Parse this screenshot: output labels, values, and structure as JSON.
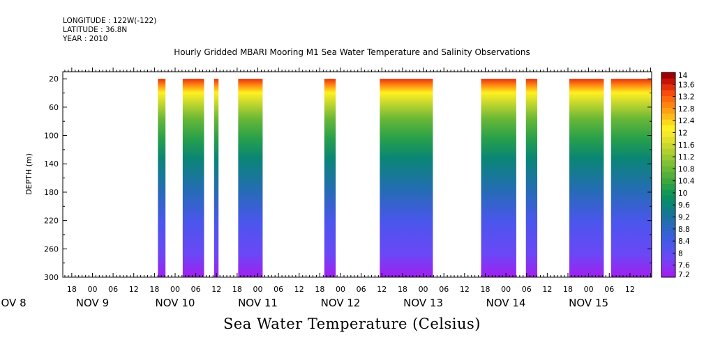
{
  "header": {
    "longitude": "LONGITUDE : 122W(-122)",
    "latitude": "LATITUDE : 36.8N",
    "year": "YEAR : 2010"
  },
  "chart_data": {
    "type": "heatmap",
    "title": "Hourly Gridded MBARI Mooring M1 Sea Water Temperature and Salinity Observations",
    "subtitle": "Sea Water Temperature (Celsius)",
    "ylabel": "DEPTH (m)",
    "y_ticks": [
      "20",
      "60",
      "100",
      "140",
      "180",
      "220",
      "260",
      "300"
    ],
    "ylim": [
      300,
      10
    ],
    "x_hour_labels": [
      {
        "hour": 18,
        "label": "18"
      },
      {
        "hour": 24,
        "label": "00"
      },
      {
        "hour": 30,
        "label": "06"
      },
      {
        "hour": 36,
        "label": "12"
      },
      {
        "hour": 42,
        "label": "18"
      },
      {
        "hour": 48,
        "label": "00"
      },
      {
        "hour": 54,
        "label": "06"
      },
      {
        "hour": 60,
        "label": "12"
      },
      {
        "hour": 66,
        "label": "18"
      },
      {
        "hour": 72,
        "label": "00"
      },
      {
        "hour": 78,
        "label": "06"
      },
      {
        "hour": 84,
        "label": "12"
      },
      {
        "hour": 90,
        "label": "18"
      },
      {
        "hour": 96,
        "label": "00"
      },
      {
        "hour": 102,
        "label": "06"
      },
      {
        "hour": 108,
        "label": "12"
      },
      {
        "hour": 114,
        "label": "18"
      },
      {
        "hour": 120,
        "label": "00"
      },
      {
        "hour": 126,
        "label": "06"
      },
      {
        "hour": 132,
        "label": "12"
      },
      {
        "hour": 138,
        "label": "18"
      },
      {
        "hour": 144,
        "label": "00"
      },
      {
        "hour": 150,
        "label": "06"
      },
      {
        "hour": 156,
        "label": "12"
      },
      {
        "hour": 162,
        "label": "18"
      },
      {
        "hour": 168,
        "label": "00"
      },
      {
        "hour": 174,
        "label": "06"
      },
      {
        "hour": 180,
        "label": "12"
      }
    ],
    "x_date_labels": [
      {
        "hour": 0,
        "label": "NOV  8"
      },
      {
        "hour": 24,
        "label": "NOV  9"
      },
      {
        "hour": 48,
        "label": "NOV 10"
      },
      {
        "hour": 72,
        "label": "NOV 11"
      },
      {
        "hour": 96,
        "label": "NOV 12"
      },
      {
        "hour": 120,
        "label": "NOV 13"
      },
      {
        "hour": 144,
        "label": "NOV 14"
      },
      {
        "hour": 168,
        "label": "NOV 15"
      }
    ],
    "xlim_hours": [
      15.4,
      186.3
    ],
    "data_segments_hours": [
      [
        43.0,
        45.2
      ],
      [
        50.2,
        56.4
      ],
      [
        59.3,
        60.6
      ],
      [
        66.3,
        73.4
      ],
      [
        91.3,
        94.6
      ],
      [
        107.4,
        122.8
      ],
      [
        136.8,
        147.0
      ],
      [
        149.8,
        153.1
      ],
      [
        162.4,
        172.4
      ],
      [
        174.5,
        186.3
      ]
    ],
    "colorbar": {
      "labels": [
        "14",
        "13.6",
        "13.2",
        "12.8",
        "12.4",
        "12",
        "11.6",
        "11.2",
        "10.8",
        "10.4",
        "10",
        "9.6",
        "9.2",
        "8.8",
        "8.4",
        "8",
        "7.6",
        "7.2"
      ],
      "levels": [
        7.2,
        7.4,
        7.6,
        7.8,
        8,
        8.2,
        8.4,
        8.6,
        8.8,
        9,
        9.2,
        9.4,
        9.6,
        9.8,
        10,
        10.2,
        10.4,
        10.6,
        10.8,
        11,
        11.2,
        11.4,
        11.6,
        11.8,
        12,
        12.2,
        12.4,
        12.6,
        12.8,
        13,
        13.2,
        13.4,
        13.6,
        13.8,
        14
      ],
      "colors": [
        "#a020f0",
        "#8e2ef4",
        "#7c3cf6",
        "#6a48f6",
        "#5a50f2",
        "#4a56ec",
        "#3e5ce2",
        "#3462d4",
        "#2c68c2",
        "#226eb0",
        "#18749c",
        "#107c88",
        "#0a8674",
        "#088e62",
        "#149656",
        "#28a04a",
        "#3ea840",
        "#54b03a",
        "#6ab836",
        "#80c034",
        "#98c832",
        "#b0d030",
        "#c8d82e",
        "#e0e02c",
        "#f4e82a",
        "#fff020",
        "#ffd81c",
        "#ffbc18",
        "#ffa014",
        "#ff8410",
        "#ff680e",
        "#f84c0c",
        "#e4300a",
        "#c41408",
        "#a00000"
      ]
    }
  }
}
